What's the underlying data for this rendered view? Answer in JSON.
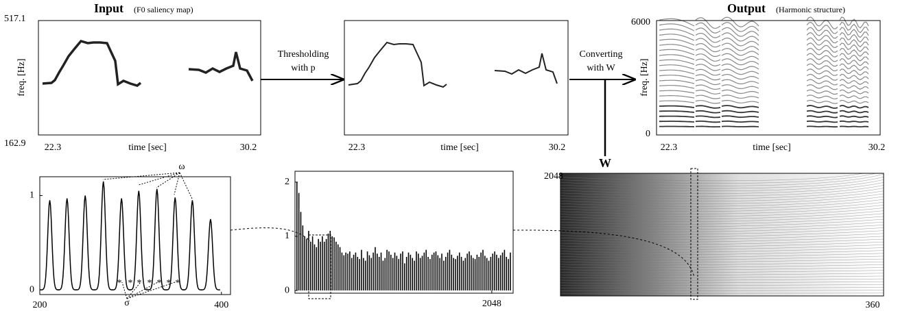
{
  "input": {
    "title": "Input",
    "subtitle": "(F0 saliency map)",
    "ylabel": "freq. [Hz]",
    "ytop": "517.1",
    "ybottom": "162.9",
    "xlabel": "time [sec]",
    "xstart": "22.3",
    "xend": "30.2"
  },
  "thresholded": {
    "xlabel": "time [sec]",
    "xstart": "22.3",
    "xend": "30.2"
  },
  "arrows": {
    "threshold": [
      "Thresholding",
      "with p"
    ],
    "convert": [
      "Converting",
      "with W"
    ],
    "w": "W"
  },
  "output": {
    "title": "Output",
    "subtitle": "(Harmonic structure)",
    "ylabel": "freq. [Hz]",
    "ytop": "6000",
    "ybottom": "0",
    "xlabel": "time [sec]",
    "xstart": "22.3",
    "xend": "30.2"
  },
  "w_matrix": {
    "ytop": "2048",
    "xend": "360"
  },
  "chart_data": [
    {
      "type": "peaks",
      "x": [
        211,
        230,
        250,
        270,
        290,
        309,
        329,
        349,
        368,
        388
      ],
      "values": [
        0.95,
        0.97,
        1.0,
        1.15,
        0.97,
        1.05,
        1.07,
        0.98,
        0.95,
        0.75
      ],
      "xlim": [
        200,
        410
      ],
      "ylim": [
        -0.05,
        1.2
      ],
      "xticks": [
        200,
        400
      ],
      "yticks": [
        0,
        1
      ],
      "annotations": [
        "ω",
        "σ"
      ],
      "color": "#000000"
    },
    {
      "type": "bar",
      "values": [
        2.0,
        1.8,
        1.45,
        1.2,
        1.0,
        0.95,
        1.1,
        0.9,
        1.0,
        0.85,
        0.8,
        0.95,
        0.9,
        1.0,
        0.9,
        0.95,
        1.05,
        1.1,
        1.0,
        0.98,
        0.9,
        0.85,
        0.8,
        0.7,
        0.65,
        0.7,
        0.68,
        0.72,
        0.6,
        0.66,
        0.7,
        0.62,
        0.58,
        0.75,
        0.6,
        0.55,
        0.72,
        0.65,
        0.6,
        0.7,
        0.8,
        0.68,
        0.62,
        0.7,
        0.55,
        0.6,
        0.75,
        0.72,
        0.66,
        0.6,
        0.7,
        0.64,
        0.58,
        0.68,
        0.72,
        0.5,
        0.62,
        0.7,
        0.66,
        0.6,
        0.55,
        0.72,
        0.68,
        0.6,
        0.64,
        0.7,
        0.75,
        0.62,
        0.58,
        0.66,
        0.7,
        0.72,
        0.65,
        0.6,
        0.68,
        0.55,
        0.62,
        0.7,
        0.75,
        0.66,
        0.6,
        0.58,
        0.64,
        0.7,
        0.62,
        0.55,
        0.6,
        0.68,
        0.72,
        0.65,
        0.6,
        0.58,
        0.66,
        0.62,
        0.7,
        0.75,
        0.64,
        0.6,
        0.55,
        0.62,
        0.68,
        0.72,
        0.66,
        0.6,
        0.65,
        0.7,
        0.75,
        0.62,
        0.58,
        0.7
      ],
      "xlim": [
        0,
        2270
      ],
      "ylim": [
        -0.05,
        2.2
      ],
      "xticks": [
        2048
      ],
      "yticks": [
        0,
        1,
        2
      ],
      "color": "#000000"
    }
  ]
}
